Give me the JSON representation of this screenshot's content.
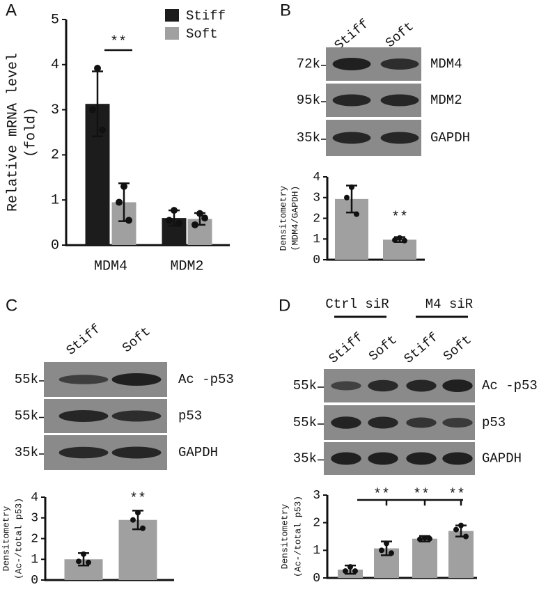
{
  "chart_data": [
    {
      "type": "bar",
      "categories": [
        "MDM4",
        "MDM2"
      ],
      "ylabel": [
        "Relative mRNA level",
        "(fold)"
      ],
      "ylim": [
        0,
        5
      ],
      "yticks": [
        0,
        1,
        2,
        3,
        4,
        5
      ],
      "annotations": [
        "**"
      ],
      "series": [
        {
          "name": "Stiff",
          "color": "#1c1c1c",
          "values": [
            3.13,
            0.6
          ],
          "errors": [
            0.72,
            0.17
          ],
          "points": [
            [
              3.92,
              3.0,
              2.55
            ],
            [
              0.77,
              0.55,
              0.48
            ]
          ]
        },
        {
          "name": "Soft",
          "color": "#a0a0a0",
          "values": [
            0.95,
            0.58
          ],
          "errors": [
            0.42,
            0.13
          ],
          "points": [
            [
              1.3,
              0.95,
              0.55
            ],
            [
              0.7,
              0.45,
              0.6
            ]
          ]
        }
      ]
    },
    {
      "type": "bar",
      "ylabel": [
        "Densitometry",
        "(MDM4/GAPDH)"
      ],
      "ylim": [
        0,
        4
      ],
      "yticks": [
        0,
        1,
        2,
        3,
        4
      ],
      "annotations": [
        "**"
      ],
      "color": "#a0a0a0",
      "values": [
        2.93,
        0.97
      ],
      "errors": [
        0.65,
        0.12
      ],
      "points": [
        [
          3.5,
          3.0,
          2.2
        ],
        [
          1.05,
          0.95,
          0.92
        ]
      ]
    },
    {
      "type": "bar",
      "ylabel": [
        "Densitometry",
        "(Ac-/total p53)"
      ],
      "ylim": [
        0,
        4
      ],
      "yticks": [
        0,
        1,
        2,
        3,
        4
      ],
      "annotations": [
        "**"
      ],
      "color": "#a0a0a0",
      "values": [
        1.0,
        2.9
      ],
      "errors": [
        0.3,
        0.45
      ],
      "points": [
        [
          1.25,
          0.9,
          0.85
        ],
        [
          3.25,
          2.9,
          2.5
        ]
      ]
    },
    {
      "type": "bar",
      "ylabel": [
        "Densitometry",
        "(Ac-/total p53)"
      ],
      "ylim": [
        0,
        3
      ],
      "yticks": [
        0,
        1,
        2,
        3
      ],
      "annotations": [
        "**",
        "**",
        "**"
      ],
      "color": "#a0a0a0",
      "values": [
        0.3,
        1.07,
        1.42,
        1.7
      ],
      "errors": [
        0.15,
        0.25,
        0.1,
        0.2
      ],
      "points": [
        [
          0.4,
          0.25,
          0.25
        ],
        [
          1.25,
          1.0,
          0.9
        ],
        [
          1.45,
          1.4,
          1.42
        ],
        [
          1.9,
          1.75,
          1.5
        ]
      ]
    }
  ],
  "panels": [
    {
      "label": "A"
    },
    {
      "label": "B",
      "blot": {
        "lanes": [
          "Stiff",
          "Soft"
        ],
        "rows": [
          {
            "marker": "72k",
            "name": "MDM4"
          },
          {
            "marker": "95k",
            "name": "MDM2"
          },
          {
            "marker": "35k",
            "name": "GAPDH"
          }
        ]
      }
    },
    {
      "label": "C",
      "blot": {
        "lanes": [
          "Stiff",
          "Soft"
        ],
        "rows": [
          {
            "marker": "55k",
            "name": "Ac -p53"
          },
          {
            "marker": "55k",
            "name": "p53"
          },
          {
            "marker": "35k",
            "name": "GAPDH"
          }
        ]
      }
    },
    {
      "label": "D",
      "blot": {
        "groups": [
          "Ctrl siR",
          "M4 siR"
        ],
        "lanes": [
          "Stiff",
          "Soft",
          "Stiff",
          "Soft"
        ],
        "rows": [
          {
            "marker": "55k",
            "name": "Ac -p53"
          },
          {
            "marker": "55k",
            "name": "p53"
          },
          {
            "marker": "35k",
            "name": "GAPDH"
          }
        ]
      }
    }
  ]
}
